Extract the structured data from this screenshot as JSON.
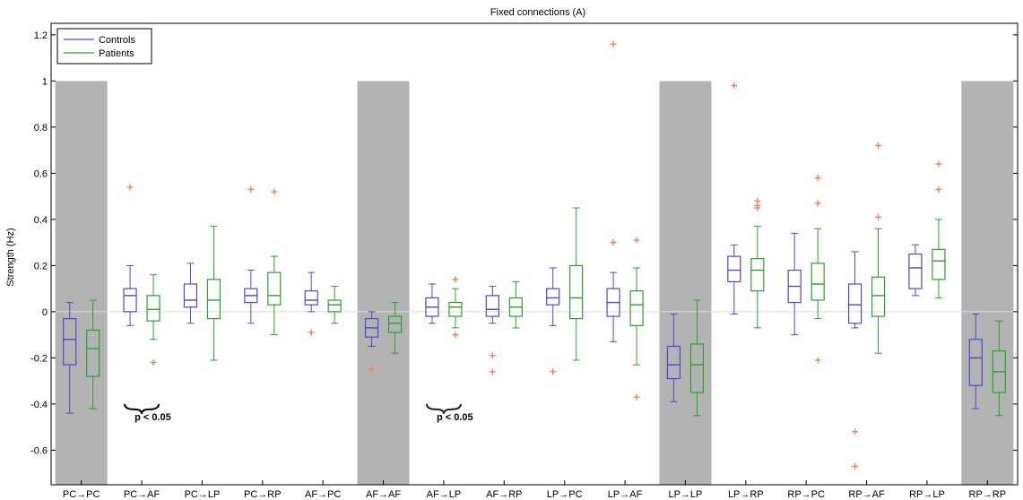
{
  "chart_data": {
    "type": "box",
    "title": "Fixed connections (A)",
    "xlabel": "",
    "ylabel": "Strength (Hz)",
    "ylim": [
      -0.75,
      1.25
    ],
    "yticks": [
      -0.6,
      -0.4,
      -0.2,
      0,
      0.2,
      0.4,
      0.6,
      0.8,
      1,
      1.2
    ],
    "categories": [
      "PC→PC",
      "PC→AF",
      "PC→LP",
      "PC→RP",
      "AF→PC",
      "AF→AF",
      "AF→LP",
      "AF→RP",
      "LP→PC",
      "LP→AF",
      "LP→LP",
      "LP→RP",
      "RP→PC",
      "RP→AF",
      "RP→LP",
      "RP→RP"
    ],
    "grid": false,
    "legend_position": "top-left",
    "self_connection_indices": [
      0,
      5,
      10,
      15
    ],
    "self_connection_band": [
      -0.75,
      1.0
    ],
    "colors": {
      "Controls": "#4a4ad0",
      "Patients": "#2ca02c",
      "outlier": "#f08060",
      "band": "#b3b3b3",
      "zero_line": "#dddddd"
    },
    "series": [
      {
        "name": "Controls",
        "boxes": [
          {
            "whislo": -0.44,
            "q1": -0.23,
            "med": -0.12,
            "q3": -0.03,
            "whishi": 0.04,
            "fliers": []
          },
          {
            "whislo": -0.06,
            "q1": 0.0,
            "med": 0.07,
            "q3": 0.1,
            "whishi": 0.2,
            "fliers": [
              0.54
            ]
          },
          {
            "whislo": -0.05,
            "q1": 0.02,
            "med": 0.05,
            "q3": 0.12,
            "whishi": 0.21,
            "fliers": []
          },
          {
            "whislo": -0.05,
            "q1": 0.04,
            "med": 0.07,
            "q3": 0.1,
            "whishi": 0.18,
            "fliers": [
              0.53
            ]
          },
          {
            "whislo": 0.0,
            "q1": 0.03,
            "med": 0.05,
            "q3": 0.09,
            "whishi": 0.17,
            "fliers": [
              -0.09
            ]
          },
          {
            "whislo": -0.15,
            "q1": -0.11,
            "med": -0.07,
            "q3": -0.03,
            "whishi": 0.0,
            "fliers": [
              -0.25
            ]
          },
          {
            "whislo": -0.05,
            "q1": -0.02,
            "med": 0.02,
            "q3": 0.06,
            "whishi": 0.12,
            "fliers": []
          },
          {
            "whislo": -0.05,
            "q1": -0.02,
            "med": 0.01,
            "q3": 0.07,
            "whishi": 0.11,
            "fliers": [
              -0.19,
              -0.26
            ]
          },
          {
            "whislo": -0.06,
            "q1": 0.03,
            "med": 0.06,
            "q3": 0.1,
            "whishi": 0.19,
            "fliers": [
              -0.26
            ]
          },
          {
            "whislo": -0.13,
            "q1": -0.02,
            "med": 0.04,
            "q3": 0.1,
            "whishi": 0.17,
            "fliers": [
              1.16,
              0.3
            ]
          },
          {
            "whislo": -0.39,
            "q1": -0.29,
            "med": -0.23,
            "q3": -0.15,
            "whishi": -0.01,
            "fliers": []
          },
          {
            "whislo": -0.01,
            "q1": 0.13,
            "med": 0.18,
            "q3": 0.24,
            "whishi": 0.29,
            "fliers": [
              0.98
            ]
          },
          {
            "whislo": -0.1,
            "q1": 0.04,
            "med": 0.11,
            "q3": 0.18,
            "whishi": 0.34,
            "fliers": []
          },
          {
            "whislo": -0.07,
            "q1": -0.05,
            "med": 0.03,
            "q3": 0.12,
            "whishi": 0.26,
            "fliers": [
              -0.52,
              -0.67
            ]
          },
          {
            "whislo": 0.07,
            "q1": 0.1,
            "med": 0.19,
            "q3": 0.25,
            "whishi": 0.29,
            "fliers": []
          },
          {
            "whislo": -0.42,
            "q1": -0.32,
            "med": -0.2,
            "q3": -0.12,
            "whishi": -0.01,
            "fliers": []
          }
        ]
      },
      {
        "name": "Patients",
        "boxes": [
          {
            "whislo": -0.42,
            "q1": -0.28,
            "med": -0.16,
            "q3": -0.08,
            "whishi": 0.05,
            "fliers": []
          },
          {
            "whislo": -0.12,
            "q1": -0.04,
            "med": 0.01,
            "q3": 0.07,
            "whishi": 0.16,
            "fliers": [
              -0.22
            ]
          },
          {
            "whislo": -0.21,
            "q1": -0.03,
            "med": 0.05,
            "q3": 0.14,
            "whishi": 0.37,
            "fliers": []
          },
          {
            "whislo": -0.1,
            "q1": 0.03,
            "med": 0.07,
            "q3": 0.17,
            "whishi": 0.24,
            "fliers": [
              0.52
            ]
          },
          {
            "whislo": -0.05,
            "q1": 0.0,
            "med": 0.03,
            "q3": 0.05,
            "whishi": 0.11,
            "fliers": []
          },
          {
            "whislo": -0.18,
            "q1": -0.09,
            "med": -0.05,
            "q3": -0.02,
            "whishi": 0.04,
            "fliers": []
          },
          {
            "whislo": -0.07,
            "q1": -0.02,
            "med": 0.02,
            "q3": 0.04,
            "whishi": 0.1,
            "fliers": [
              0.14,
              -0.1
            ]
          },
          {
            "whislo": -0.07,
            "q1": -0.02,
            "med": 0.02,
            "q3": 0.06,
            "whishi": 0.13,
            "fliers": []
          },
          {
            "whislo": -0.21,
            "q1": -0.03,
            "med": 0.06,
            "q3": 0.2,
            "whishi": 0.45,
            "fliers": []
          },
          {
            "whislo": -0.23,
            "q1": -0.06,
            "med": 0.03,
            "q3": 0.09,
            "whishi": 0.19,
            "fliers": [
              0.31,
              -0.37
            ]
          },
          {
            "whislo": -0.45,
            "q1": -0.35,
            "med": -0.23,
            "q3": -0.14,
            "whishi": 0.05,
            "fliers": []
          },
          {
            "whislo": -0.07,
            "q1": 0.09,
            "med": 0.18,
            "q3": 0.23,
            "whishi": 0.37,
            "fliers": [
              0.48,
              0.46,
              0.45
            ]
          },
          {
            "whislo": -0.03,
            "q1": 0.05,
            "med": 0.12,
            "q3": 0.21,
            "whishi": 0.36,
            "fliers": [
              0.58,
              0.47,
              -0.21
            ]
          },
          {
            "whislo": -0.18,
            "q1": -0.02,
            "med": 0.07,
            "q3": 0.15,
            "whishi": 0.36,
            "fliers": [
              0.72,
              0.41
            ]
          },
          {
            "whislo": 0.06,
            "q1": 0.14,
            "med": 0.22,
            "q3": 0.27,
            "whishi": 0.4,
            "fliers": [
              0.64,
              0.53
            ]
          },
          {
            "whislo": -0.45,
            "q1": -0.35,
            "med": -0.26,
            "q3": -0.17,
            "whishi": -0.04,
            "fliers": []
          }
        ]
      }
    ],
    "annotations": [
      {
        "text": "p < 0.05",
        "category_index": 1,
        "brace_value": -0.4,
        "label_value": -0.44,
        "color": "#000000"
      },
      {
        "text": "p < 0.05",
        "category_index": 6,
        "brace_value": -0.4,
        "label_value": -0.44,
        "color": "#222222"
      }
    ]
  }
}
